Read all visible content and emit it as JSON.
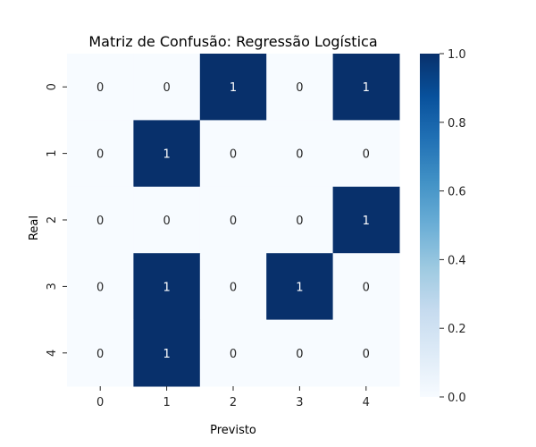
{
  "chart_data": {
    "type": "heatmap",
    "title": "Matriz de Confusão: Regressão Logística",
    "xlabel": "Previsto",
    "ylabel": "Real",
    "x_categories": [
      "0",
      "1",
      "2",
      "3",
      "4"
    ],
    "y_categories": [
      "0",
      "1",
      "2",
      "3",
      "4"
    ],
    "values": [
      [
        0,
        0,
        1,
        0,
        1
      ],
      [
        0,
        1,
        0,
        0,
        0
      ],
      [
        0,
        0,
        0,
        0,
        1
      ],
      [
        0,
        1,
        0,
        1,
        0
      ],
      [
        0,
        1,
        0,
        0,
        0
      ]
    ],
    "colormap": "Blues",
    "color_low": "#f7fbff",
    "color_high": "#08306b",
    "annotation_color_low": "#262626",
    "annotation_color_high": "#ffffff",
    "colorbar_range": [
      0.0,
      1.0
    ],
    "colorbar_ticks": [
      "0.0",
      "0.2",
      "0.4",
      "0.6",
      "0.8",
      "1.0"
    ],
    "grid": false
  }
}
